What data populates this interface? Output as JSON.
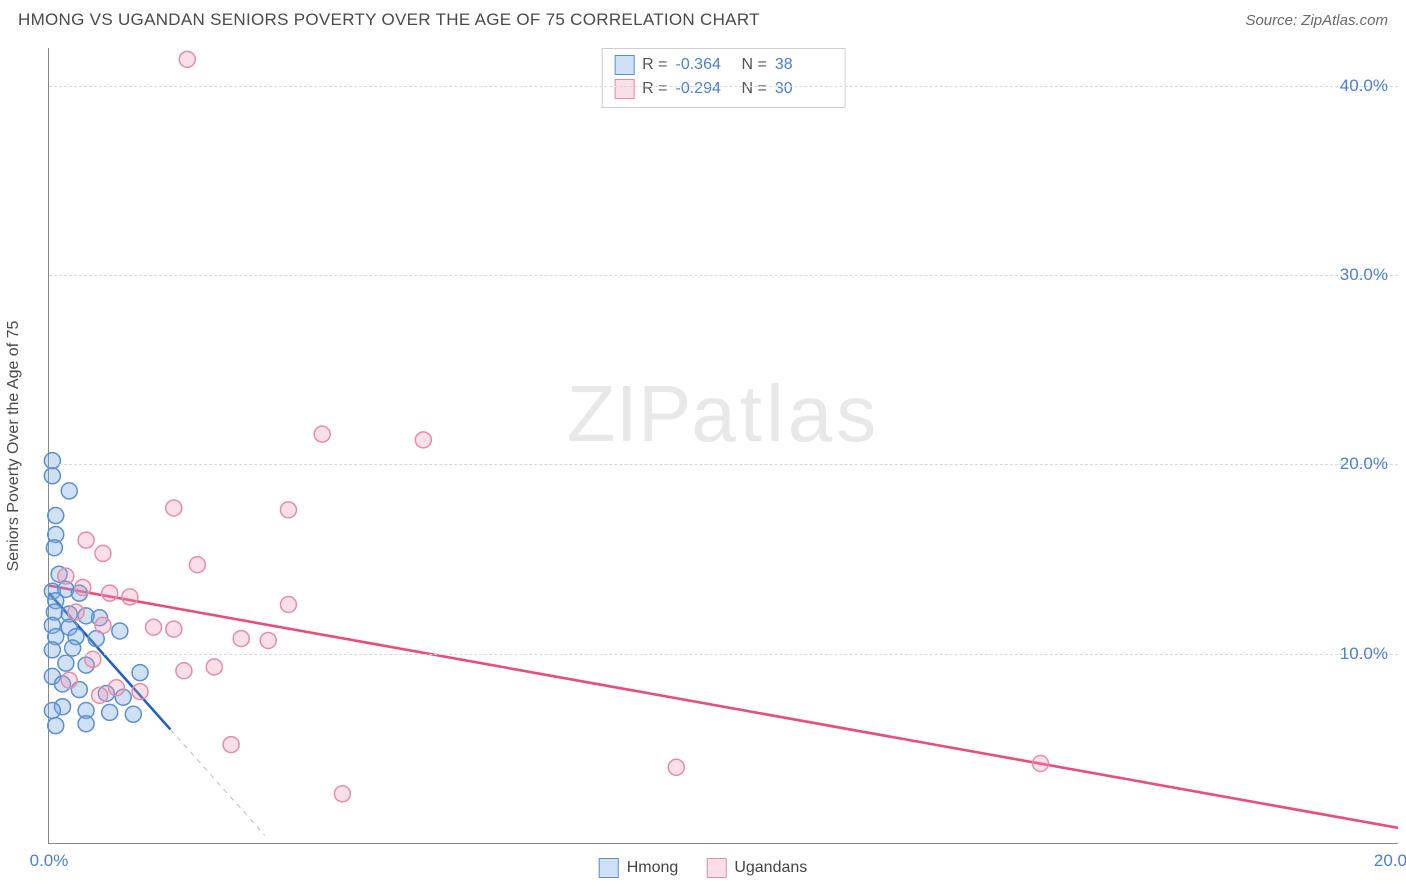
{
  "header": {
    "title": "HMONG VS UGANDAN SENIORS POVERTY OVER THE AGE OF 75 CORRELATION CHART",
    "source": "Source: ZipAtlas.com"
  },
  "yaxis": {
    "title": "Seniors Poverty Over the Age of 75"
  },
  "watermark": {
    "bold": "ZIP",
    "light": "atlas"
  },
  "chart": {
    "type": "scatter",
    "xlim": [
      0,
      20
    ],
    "ylim": [
      0,
      42
    ],
    "xticks": [
      {
        "v": 0,
        "label": "0.0%"
      },
      {
        "v": 20,
        "label": "20.0%"
      }
    ],
    "yticks": [
      {
        "v": 10,
        "label": "10.0%"
      },
      {
        "v": 20,
        "label": "20.0%"
      },
      {
        "v": 30,
        "label": "30.0%"
      },
      {
        "v": 40,
        "label": "40.0%"
      }
    ],
    "grid_color": "#d8d8d8",
    "background_color": "#ffffff",
    "marker_radius": 8,
    "marker_stroke_width": 1.5,
    "series": [
      {
        "name": "Hmong",
        "fill": "rgba(120,170,230,0.35)",
        "stroke": "#5b8fd0",
        "points": [
          [
            0.05,
            20.2
          ],
          [
            0.05,
            19.4
          ],
          [
            0.3,
            18.6
          ],
          [
            0.1,
            17.3
          ],
          [
            0.1,
            16.3
          ],
          [
            0.08,
            15.6
          ],
          [
            0.15,
            14.2
          ],
          [
            0.05,
            13.3
          ],
          [
            0.25,
            13.4
          ],
          [
            0.45,
            13.2
          ],
          [
            0.1,
            12.8
          ],
          [
            0.08,
            12.2
          ],
          [
            0.3,
            12.1
          ],
          [
            0.55,
            12.0
          ],
          [
            0.75,
            11.9
          ],
          [
            0.05,
            11.5
          ],
          [
            0.3,
            11.4
          ],
          [
            0.1,
            10.9
          ],
          [
            0.4,
            10.9
          ],
          [
            0.7,
            10.8
          ],
          [
            1.05,
            11.2
          ],
          [
            0.05,
            10.2
          ],
          [
            0.35,
            10.3
          ],
          [
            0.25,
            9.5
          ],
          [
            0.55,
            9.4
          ],
          [
            1.35,
            9.0
          ],
          [
            0.05,
            8.8
          ],
          [
            0.2,
            8.4
          ],
          [
            0.45,
            8.1
          ],
          [
            0.85,
            7.9
          ],
          [
            1.1,
            7.7
          ],
          [
            0.2,
            7.2
          ],
          [
            0.05,
            7.0
          ],
          [
            0.55,
            7.0
          ],
          [
            0.9,
            6.9
          ],
          [
            1.25,
            6.8
          ],
          [
            0.1,
            6.2
          ],
          [
            0.55,
            6.3
          ]
        ],
        "trend": {
          "x1": 0,
          "y1": 13.2,
          "x2": 1.8,
          "y2": 6.0,
          "color": "#1f5fc4",
          "width": 2.6,
          "extend_to_x": 3.2
        },
        "stats": {
          "R": "-0.364",
          "N": "38"
        }
      },
      {
        "name": "Ugandans",
        "fill": "rgba(240,150,180,0.30)",
        "stroke": "#e58ca8",
        "points": [
          [
            2.05,
            41.4
          ],
          [
            4.05,
            21.6
          ],
          [
            1.85,
            17.7
          ],
          [
            3.55,
            17.6
          ],
          [
            0.55,
            16.0
          ],
          [
            0.8,
            15.3
          ],
          [
            2.2,
            14.7
          ],
          [
            0.25,
            14.1
          ],
          [
            0.5,
            13.5
          ],
          [
            0.9,
            13.2
          ],
          [
            1.2,
            13.0
          ],
          [
            3.55,
            12.6
          ],
          [
            0.4,
            12.2
          ],
          [
            0.8,
            11.5
          ],
          [
            1.55,
            11.4
          ],
          [
            1.85,
            11.3
          ],
          [
            2.85,
            10.8
          ],
          [
            3.25,
            10.7
          ],
          [
            0.65,
            9.7
          ],
          [
            2.45,
            9.3
          ],
          [
            2.0,
            9.1
          ],
          [
            0.3,
            8.6
          ],
          [
            1.0,
            8.2
          ],
          [
            1.35,
            8.0
          ],
          [
            0.75,
            7.8
          ],
          [
            2.7,
            5.2
          ],
          [
            4.35,
            2.6
          ],
          [
            9.3,
            4.0
          ],
          [
            14.7,
            4.2
          ],
          [
            5.55,
            21.3
          ]
        ],
        "trend": {
          "x1": 0,
          "y1": 13.6,
          "x2": 20,
          "y2": 0.8,
          "color": "#e94d7a",
          "width": 2.6
        },
        "stats": {
          "R": "-0.294",
          "N": "30"
        }
      }
    ]
  },
  "stats_box": {
    "r_label": "R =",
    "n_label": "N ="
  },
  "legend": {
    "items": [
      "Hmong",
      "Ugandans"
    ]
  }
}
